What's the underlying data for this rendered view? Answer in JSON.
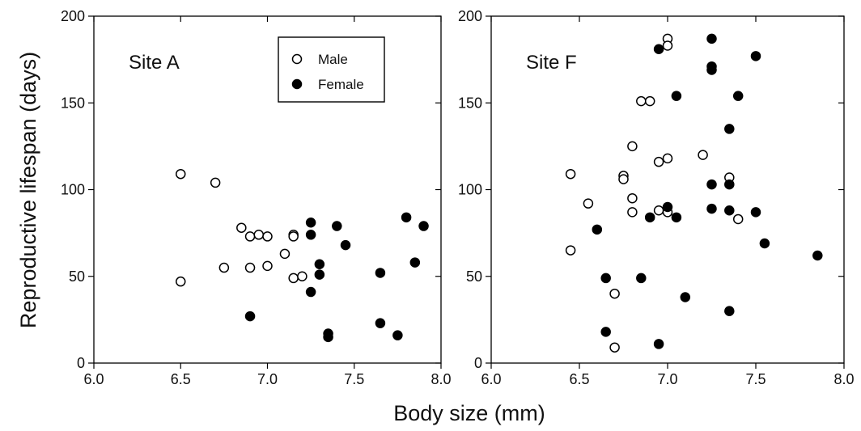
{
  "chart_data": {
    "type": "scatter",
    "xlabel": "Body size (mm)",
    "ylabel": "Reproductive lifespan (days)",
    "xlim": [
      6.0,
      8.0
    ],
    "ylim": [
      0,
      200
    ],
    "x_ticks": [
      "6.0",
      "6.5",
      "7.0",
      "7.5",
      "8.0"
    ],
    "y_ticks": [
      "0",
      "50",
      "100",
      "150",
      "200"
    ],
    "legend": {
      "placement": "top-right of Site A panel",
      "entries": [
        {
          "name": "Male",
          "marker": "open-circle"
        },
        {
          "name": "Female",
          "marker": "filled-circle"
        }
      ]
    },
    "panels": [
      {
        "label": "Site A",
        "series": [
          {
            "name": "Male",
            "points": [
              [
                6.5,
                109
              ],
              [
                6.5,
                47
              ],
              [
                6.7,
                104
              ],
              [
                6.75,
                55
              ],
              [
                6.85,
                78
              ],
              [
                6.9,
                73
              ],
              [
                6.95,
                74
              ],
              [
                7.0,
                73
              ],
              [
                6.9,
                55
              ],
              [
                7.0,
                56
              ],
              [
                7.1,
                63
              ],
              [
                7.15,
                74
              ],
              [
                7.15,
                73
              ],
              [
                7.15,
                49
              ],
              [
                7.2,
                50
              ]
            ]
          },
          {
            "name": "Female",
            "points": [
              [
                6.9,
                27
              ],
              [
                7.25,
                81
              ],
              [
                7.25,
                74
              ],
              [
                7.25,
                41
              ],
              [
                7.3,
                57
              ],
              [
                7.3,
                51
              ],
              [
                7.35,
                17
              ],
              [
                7.35,
                15
              ],
              [
                7.4,
                79
              ],
              [
                7.45,
                68
              ],
              [
                7.65,
                52
              ],
              [
                7.65,
                23
              ],
              [
                7.75,
                16
              ],
              [
                7.8,
                84
              ],
              [
                7.85,
                58
              ],
              [
                7.9,
                79
              ]
            ]
          }
        ]
      },
      {
        "label": "Site F",
        "series": [
          {
            "name": "Male",
            "points": [
              [
                6.45,
                109
              ],
              [
                6.45,
                65
              ],
              [
                6.55,
                92
              ],
              [
                6.7,
                40
              ],
              [
                6.7,
                9
              ],
              [
                6.75,
                108
              ],
              [
                6.75,
                106
              ],
              [
                6.8,
                125
              ],
              [
                6.8,
                95
              ],
              [
                6.8,
                87
              ],
              [
                6.85,
                151
              ],
              [
                6.9,
                151
              ],
              [
                6.95,
                116
              ],
              [
                6.95,
                88
              ],
              [
                7.0,
                118
              ],
              [
                7.0,
                87
              ],
              [
                7.0,
                187
              ],
              [
                7.0,
                183
              ],
              [
                7.2,
                120
              ],
              [
                7.35,
                107
              ],
              [
                7.4,
                83
              ]
            ]
          },
          {
            "name": "Female",
            "points": [
              [
                6.6,
                77
              ],
              [
                6.65,
                49
              ],
              [
                6.65,
                18
              ],
              [
                6.85,
                49
              ],
              [
                6.9,
                84
              ],
              [
                6.95,
                181
              ],
              [
                6.95,
                11
              ],
              [
                7.0,
                90
              ],
              [
                7.05,
                154
              ],
              [
                7.05,
                84
              ],
              [
                7.1,
                38
              ],
              [
                7.25,
                187
              ],
              [
                7.25,
                171
              ],
              [
                7.25,
                169
              ],
              [
                7.25,
                103
              ],
              [
                7.25,
                89
              ],
              [
                7.35,
                135
              ],
              [
                7.35,
                103
              ],
              [
                7.35,
                88
              ],
              [
                7.35,
                30
              ],
              [
                7.4,
                154
              ],
              [
                7.5,
                177
              ],
              [
                7.5,
                87
              ],
              [
                7.55,
                69
              ],
              [
                7.85,
                62
              ]
            ]
          }
        ]
      }
    ]
  }
}
